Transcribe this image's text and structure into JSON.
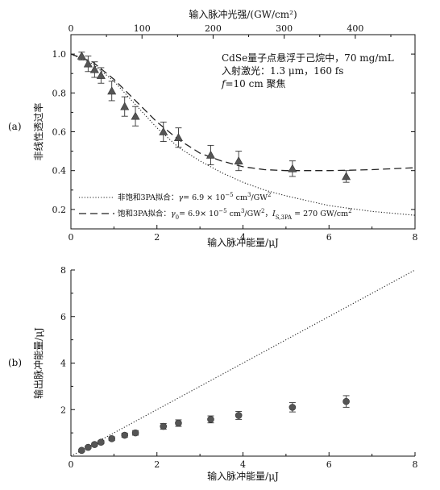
{
  "chart_data": [
    {
      "panel_label": "(a)",
      "type": "scatter",
      "xlabel": "输入脉冲能量/μJ",
      "ylabel": "非线性透过率",
      "top_xlabel": "输入脉冲光强/(GW/cm²)",
      "xlim": [
        0,
        8
      ],
      "ylim": [
        0.1,
        1.1
      ],
      "top_xlim": [
        0,
        484
      ],
      "x_ticks": [
        "0",
        "2",
        "4",
        "6",
        "8"
      ],
      "y_ticks": [
        "0.2",
        "0.4",
        "0.6",
        "0.8",
        "1.0"
      ],
      "top_x_ticks": [
        "0",
        "100",
        "200",
        "300",
        "400"
      ],
      "annotation_lines": [
        "CdSe量子点悬浮于己烷中，70 mg/mL",
        "入射激光：1.3 μm，160 fs",
        "f=10 cm 聚焦"
      ],
      "legend": [
        {
          "text": "非饱和3PA拟合：γ= 6.9 × 10⁻⁵ cm³/GW²",
          "style": "dotted"
        },
        {
          "text": "饱和3PA拟合：γ₀= 6.9× 10⁻⁵ cm³/GW²，I_S,3PA = 270 GW/cm²",
          "style": "dashed"
        }
      ],
      "legend_position": "bottom-left",
      "series": [
        {
          "marker": "triangle",
          "x": [
            0.25,
            0.4,
            0.55,
            0.7,
            0.95,
            1.25,
            1.5,
            2.15,
            2.5,
            3.25,
            3.9,
            5.15,
            6.4
          ],
          "y": [
            0.99,
            0.95,
            0.92,
            0.89,
            0.81,
            0.73,
            0.68,
            0.6,
            0.57,
            0.48,
            0.45,
            0.41,
            0.37
          ],
          "err": [
            0.02,
            0.04,
            0.04,
            0.04,
            0.05,
            0.05,
            0.05,
            0.05,
            0.05,
            0.05,
            0.05,
            0.04,
            0.03
          ]
        }
      ],
      "fits": [
        {
          "style": "dotted",
          "x": [
            0,
            0.5,
            1,
            1.5,
            2,
            2.5,
            3,
            3.5,
            4,
            4.5,
            5,
            5.5,
            6,
            6.5,
            7,
            7.5,
            8
          ],
          "y": [
            1.0,
            0.95,
            0.86,
            0.74,
            0.62,
            0.52,
            0.45,
            0.39,
            0.34,
            0.3,
            0.27,
            0.245,
            0.22,
            0.205,
            0.19,
            0.18,
            0.17
          ]
        },
        {
          "style": "dashed",
          "x": [
            0,
            0.5,
            1,
            1.5,
            2,
            2.5,
            3,
            3.5,
            4,
            4.5,
            5,
            5.5,
            6,
            6.5,
            7,
            7.5,
            8
          ],
          "y": [
            1.0,
            0.96,
            0.87,
            0.76,
            0.65,
            0.56,
            0.49,
            0.45,
            0.42,
            0.405,
            0.4,
            0.4,
            0.4,
            0.402,
            0.405,
            0.41,
            0.415
          ]
        }
      ]
    },
    {
      "panel_label": "(b)",
      "type": "scatter",
      "xlabel": "输入脉冲能量/μJ",
      "ylabel": "输出脉冲能量/μJ",
      "xlim": [
        0,
        8
      ],
      "ylim": [
        0,
        8
      ],
      "x_ticks": [
        "0",
        "2",
        "4",
        "6",
        "8"
      ],
      "y_ticks": [
        "2",
        "4",
        "6",
        "8"
      ],
      "series": [
        {
          "marker": "circle",
          "x": [
            0.25,
            0.4,
            0.55,
            0.7,
            0.95,
            1.25,
            1.5,
            2.15,
            2.5,
            3.25,
            3.9,
            5.15,
            6.4
          ],
          "y": [
            0.25,
            0.38,
            0.5,
            0.6,
            0.75,
            0.9,
            1.0,
            1.28,
            1.42,
            1.58,
            1.75,
            2.1,
            2.35
          ],
          "err": [
            0.05,
            0.05,
            0.06,
            0.07,
            0.08,
            0.09,
            0.1,
            0.12,
            0.14,
            0.15,
            0.17,
            0.2,
            0.25
          ]
        }
      ],
      "fits": [
        {
          "style": "dotted",
          "x": [
            0,
            8
          ],
          "y": [
            0,
            8
          ]
        }
      ]
    }
  ]
}
